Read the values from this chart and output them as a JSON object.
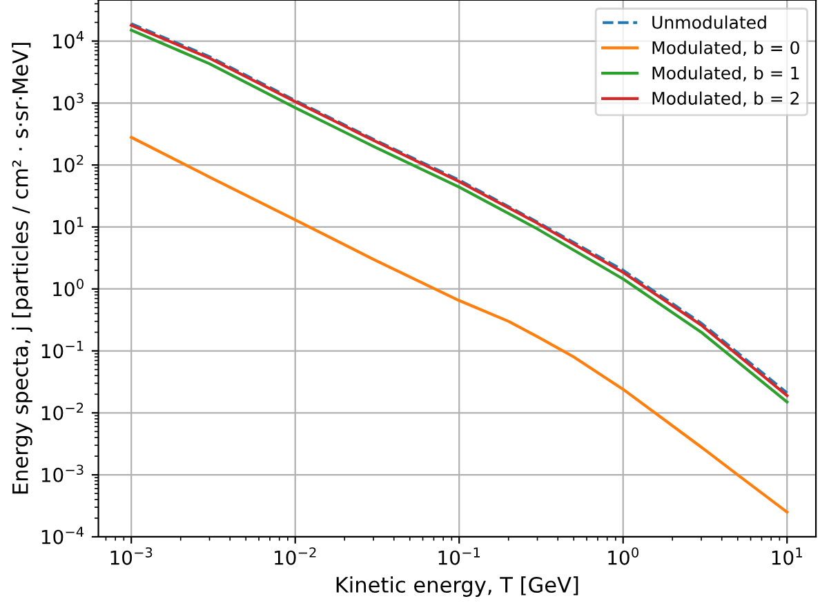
{
  "chart_data": {
    "type": "line",
    "xlabel": "Kinetic energy, T [GeV]",
    "ylabel": "Energy specta, j [particles / cm² · s·sr·MeV]",
    "log": "xy",
    "grid": true,
    "legend": "top right",
    "xlim": [
      0.00063,
      15
    ],
    "ylim": [
      0.0001,
      46000
    ],
    "xticks": [
      {
        "value": 0.001,
        "label": "10$^{−3}$"
      },
      {
        "value": 0.01,
        "label": "10$^{−2}$"
      },
      {
        "value": 0.1,
        "label": "10$^{−1}$"
      },
      {
        "value": 1,
        "label": "10$^{0}$"
      },
      {
        "value": 10,
        "label": "10$^{1}$"
      }
    ],
    "yticks": [
      {
        "value": 0.0001,
        "label": "10$^{−4}$"
      },
      {
        "value": 0.001,
        "label": "10$^{−3}$"
      },
      {
        "value": 0.01,
        "label": "10$^{−2}$"
      },
      {
        "value": 0.1,
        "label": "10$^{−1}$"
      },
      {
        "value": 1,
        "label": "10$^{0}$"
      },
      {
        "value": 10,
        "label": "10$^{1}$"
      },
      {
        "value": 100,
        "label": "10$^{2}$"
      },
      {
        "value": 1000,
        "label": "10$^{3}$"
      },
      {
        "value": 10000,
        "label": "10$^{4}$"
      }
    ],
    "x": [
      0.001,
      0.003,
      0.01,
      0.03,
      0.1,
      0.3,
      1,
      3,
      10
    ],
    "series": [
      {
        "name": "Unmodulated",
        "color": "#1f77b4",
        "line_style": "dashed",
        "values": [
          19000,
          5600,
          1100,
          260,
          57,
          12,
          2.0,
          0.28,
          0.021
        ]
      },
      {
        "name": "Modulated, b = 0",
        "color": "#ff7f0e",
        "line_style": "solid",
        "x": [
          0.001,
          0.003,
          0.01,
          0.03,
          0.1,
          0.2,
          0.3,
          0.5,
          1,
          2,
          3,
          5,
          10
        ],
        "values": [
          280,
          64,
          13,
          3.0,
          0.65,
          0.3,
          0.17,
          0.08,
          0.024,
          0.0062,
          0.0028,
          0.001,
          0.00025
        ]
      },
      {
        "name": "Modulated, b = 1",
        "color": "#2ca02c",
        "line_style": "solid",
        "values": [
          15000,
          4300,
          840,
          200,
          44,
          9.3,
          1.45,
          0.2,
          0.015
        ]
      },
      {
        "name": "Modulated, b = 2",
        "color": "#d62728",
        "line_style": "solid",
        "values": [
          18000,
          5300,
          1050,
          250,
          54,
          11.5,
          1.85,
          0.26,
          0.019
        ]
      }
    ]
  }
}
